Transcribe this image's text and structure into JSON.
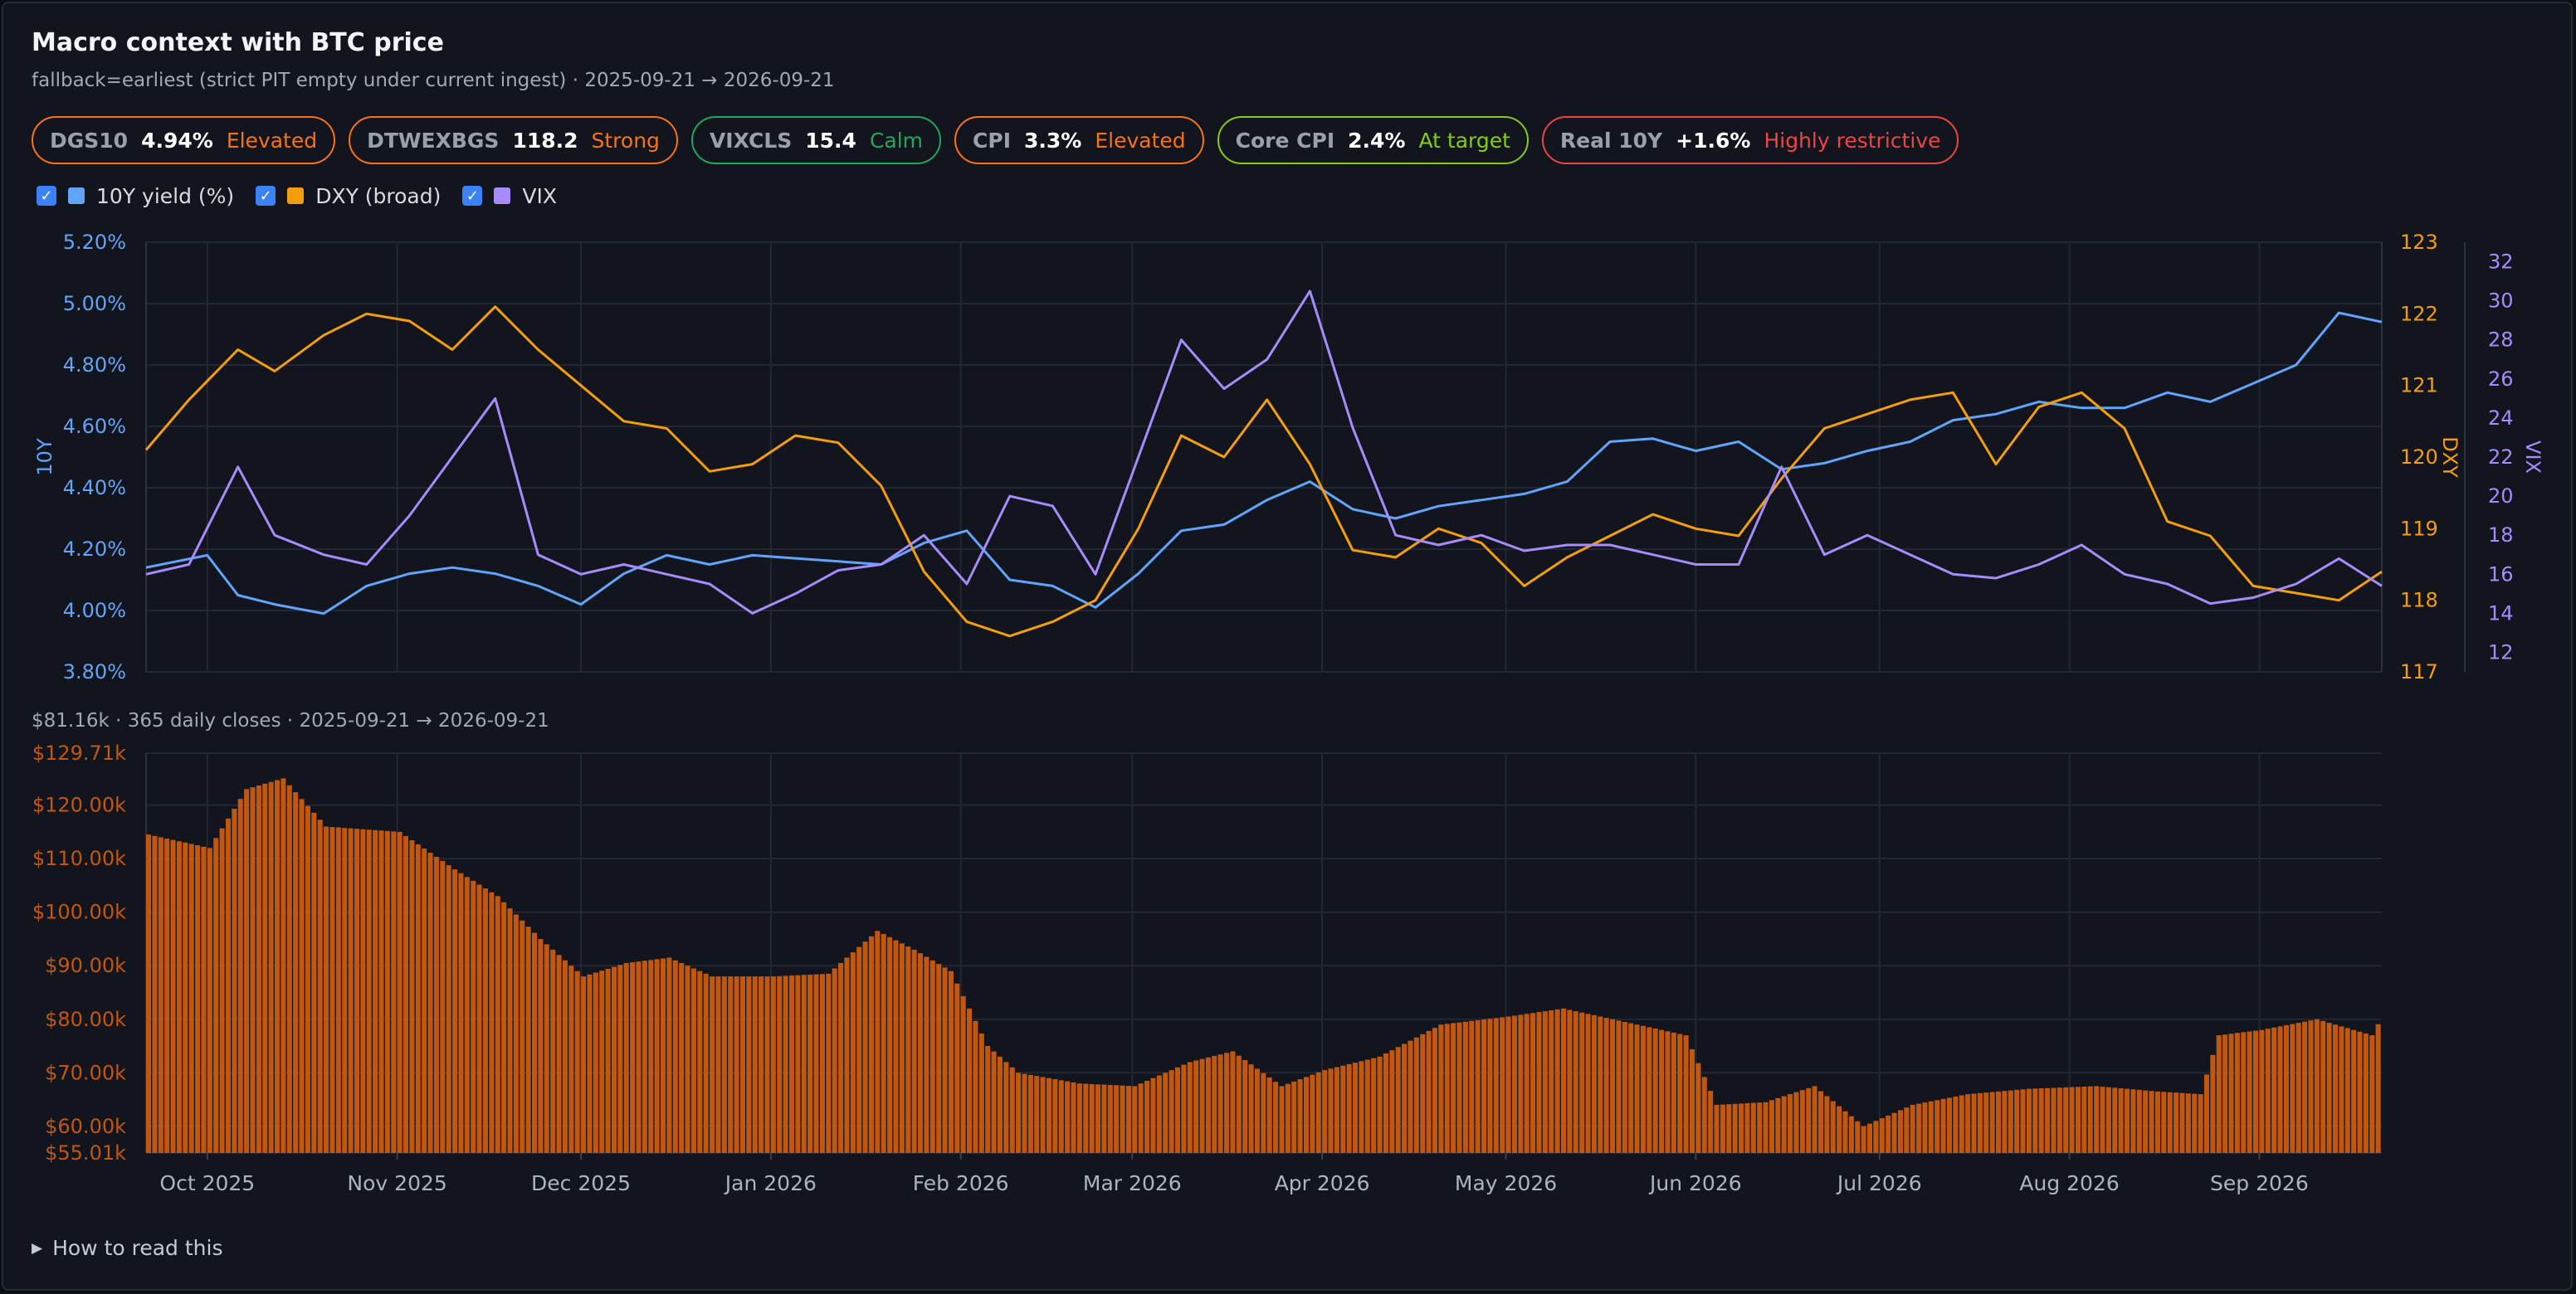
{
  "title": "Macro context with BTC price",
  "subtitle": "fallback=earliest (strict PIT empty under current ingest) · 2025-09-21 → 2026-09-21",
  "indicators": [
    {
      "code": "DGS10",
      "value": "4.94%",
      "status": "Elevated",
      "border": "#f97316",
      "status_color": "#f97316"
    },
    {
      "code": "DTWEXBGS",
      "value": "118.2",
      "status": "Strong",
      "border": "#f97316",
      "status_color": "#f97316"
    },
    {
      "code": "VIXCLS",
      "value": "15.4",
      "status": "Calm",
      "border": "#22a85a",
      "status_color": "#22a85a"
    },
    {
      "code": "CPI",
      "value": "3.3%",
      "status": "Elevated",
      "border": "#f97316",
      "status_color": "#f97316"
    },
    {
      "code": "Core CPI",
      "value": "2.4%",
      "status": "At target",
      "border": "#84cc16",
      "status_color": "#84cc16"
    },
    {
      "code": "Real 10Y",
      "value": "+1.6%",
      "status": "Highly restrictive",
      "border": "#ef4444",
      "status_color": "#ef4444"
    }
  ],
  "legend": [
    {
      "label": "10Y yield (%)",
      "color": "#60a5fa",
      "checked": true,
      "check_glyph": "✓"
    },
    {
      "label": "DXY (broad)",
      "color": "#f59e0b",
      "checked": true,
      "check_glyph": "✓"
    },
    {
      "label": "VIX",
      "color": "#a78bfa",
      "checked": true,
      "check_glyph": "✓"
    }
  ],
  "btc_summary": "$81.16k · 365 daily closes · 2025-09-21 → 2026-09-21",
  "how_to_read": "How to read this",
  "how_to_read_glyph": "▶",
  "chart_data": [
    {
      "type": "line",
      "x_range": [
        "2025-09-21",
        "2026-09-21"
      ],
      "series": [
        {
          "name": "10Y yield (%)",
          "axis": "left",
          "ylabel": "10Y",
          "color": "#60a5fa",
          "ylim": [
            3.8,
            5.2
          ],
          "ytick_labels": [
            "5.20%",
            "5.00%",
            "4.80%",
            "4.60%",
            "4.40%",
            "4.20%",
            "4.00%",
            "3.80%"
          ],
          "ytick_values": [
            5.2,
            5.0,
            4.8,
            4.6,
            4.4,
            4.2,
            4.0,
            3.8
          ],
          "x": [
            "2025-09-21",
            "2025-10-01",
            "2025-10-06",
            "2025-10-12",
            "2025-10-20",
            "2025-10-27",
            "2025-11-03",
            "2025-11-10",
            "2025-11-17",
            "2025-11-24",
            "2025-12-01",
            "2025-12-08",
            "2025-12-15",
            "2025-12-22",
            "2025-12-29",
            "2026-01-05",
            "2026-01-12",
            "2026-01-19",
            "2026-01-26",
            "2026-02-02",
            "2026-02-09",
            "2026-02-16",
            "2026-02-23",
            "2026-03-02",
            "2026-03-09",
            "2026-03-16",
            "2026-03-23",
            "2026-03-30",
            "2026-04-06",
            "2026-04-13",
            "2026-04-20",
            "2026-04-27",
            "2026-05-04",
            "2026-05-11",
            "2026-05-18",
            "2026-05-25",
            "2026-06-01",
            "2026-06-08",
            "2026-06-15",
            "2026-06-22",
            "2026-06-29",
            "2026-07-06",
            "2026-07-13",
            "2026-07-20",
            "2026-07-27",
            "2026-08-03",
            "2026-08-10",
            "2026-08-17",
            "2026-08-24",
            "2026-08-31",
            "2026-09-07",
            "2026-09-14",
            "2026-09-21"
          ],
          "values": [
            4.14,
            4.18,
            4.05,
            4.02,
            3.99,
            4.08,
            4.12,
            4.14,
            4.12,
            4.08,
            4.02,
            4.12,
            4.18,
            4.15,
            4.18,
            4.17,
            4.16,
            4.15,
            4.22,
            4.26,
            4.1,
            4.08,
            4.01,
            4.12,
            4.26,
            4.28,
            4.36,
            4.42,
            4.33,
            4.3,
            4.34,
            4.36,
            4.38,
            4.42,
            4.55,
            4.56,
            4.52,
            4.55,
            4.46,
            4.48,
            4.52,
            4.55,
            4.62,
            4.64,
            4.68,
            4.66,
            4.66,
            4.71,
            4.68,
            4.74,
            4.8,
            4.97,
            4.94
          ]
        },
        {
          "name": "DXY (broad)",
          "axis": "right",
          "ylabel": "DXY",
          "color": "#f59e0b",
          "ylim": [
            117,
            123
          ],
          "ytick_labels": [
            "123",
            "122",
            "121",
            "120",
            "119",
            "118",
            "117"
          ],
          "ytick_values": [
            123,
            122,
            121,
            120,
            119,
            118,
            117
          ],
          "x": [
            "2025-09-21",
            "2025-09-28",
            "2025-10-06",
            "2025-10-12",
            "2025-10-20",
            "2025-10-27",
            "2025-11-03",
            "2025-11-10",
            "2025-11-17",
            "2025-11-24",
            "2025-12-01",
            "2025-12-08",
            "2025-12-15",
            "2025-12-22",
            "2025-12-29",
            "2026-01-05",
            "2026-01-12",
            "2026-01-19",
            "2026-01-26",
            "2026-02-02",
            "2026-02-09",
            "2026-02-16",
            "2026-02-23",
            "2026-03-02",
            "2026-03-09",
            "2026-03-16",
            "2026-03-23",
            "2026-03-30",
            "2026-04-06",
            "2026-04-13",
            "2026-04-20",
            "2026-04-27",
            "2026-05-04",
            "2026-05-11",
            "2026-05-18",
            "2026-05-25",
            "2026-06-01",
            "2026-06-08",
            "2026-06-15",
            "2026-06-22",
            "2026-06-29",
            "2026-07-06",
            "2026-07-13",
            "2026-07-20",
            "2026-07-27",
            "2026-08-03",
            "2026-08-10",
            "2026-08-17",
            "2026-08-24",
            "2026-08-31",
            "2026-09-07",
            "2026-09-14",
            "2026-09-21"
          ],
          "values": [
            120.1,
            120.8,
            121.5,
            121.2,
            121.7,
            122.0,
            121.9,
            121.5,
            122.1,
            121.5,
            121.0,
            120.5,
            120.4,
            119.8,
            119.9,
            120.3,
            120.2,
            119.6,
            118.4,
            117.7,
            117.5,
            117.7,
            118.0,
            119.0,
            120.3,
            120.0,
            120.8,
            119.9,
            118.7,
            118.6,
            119.0,
            118.8,
            118.2,
            118.6,
            118.9,
            119.2,
            119.0,
            118.9,
            119.7,
            120.4,
            120.6,
            120.8,
            120.9,
            119.9,
            120.7,
            120.9,
            120.4,
            119.1,
            118.9,
            118.2,
            118.1,
            118.0,
            118.4
          ]
        },
        {
          "name": "VIX",
          "axis": "right2",
          "ylabel": "VIX",
          "color": "#a78bfa",
          "ylim": [
            11,
            33
          ],
          "ytick_labels": [
            "32",
            "30",
            "28",
            "26",
            "24",
            "22",
            "20",
            "18",
            "16",
            "14",
            "12"
          ],
          "ytick_values": [
            32,
            30,
            28,
            26,
            24,
            22,
            20,
            18,
            16,
            14,
            12
          ],
          "x": [
            "2025-09-21",
            "2025-09-28",
            "2025-10-06",
            "2025-10-12",
            "2025-10-20",
            "2025-10-27",
            "2025-11-03",
            "2025-11-10",
            "2025-11-17",
            "2025-11-24",
            "2025-12-01",
            "2025-12-08",
            "2025-12-15",
            "2025-12-22",
            "2025-12-29",
            "2026-01-05",
            "2026-01-12",
            "2026-01-19",
            "2026-01-26",
            "2026-02-02",
            "2026-02-09",
            "2026-02-16",
            "2026-02-23",
            "2026-03-02",
            "2026-03-09",
            "2026-03-16",
            "2026-03-23",
            "2026-03-30",
            "2026-04-06",
            "2026-04-13",
            "2026-04-20",
            "2026-04-27",
            "2026-05-04",
            "2026-05-11",
            "2026-05-18",
            "2026-05-25",
            "2026-06-01",
            "2026-06-08",
            "2026-06-15",
            "2026-06-22",
            "2026-06-29",
            "2026-07-06",
            "2026-07-13",
            "2026-07-20",
            "2026-07-27",
            "2026-08-03",
            "2026-08-10",
            "2026-08-17",
            "2026-08-24",
            "2026-08-31",
            "2026-09-07",
            "2026-09-14",
            "2026-09-21"
          ],
          "values": [
            16.0,
            16.5,
            21.5,
            18.0,
            17.0,
            16.5,
            19.0,
            22.0,
            25.0,
            17.0,
            16.0,
            16.5,
            16.0,
            15.5,
            14.0,
            15.0,
            16.2,
            16.5,
            18.0,
            15.5,
            20.0,
            19.5,
            16.0,
            22.0,
            28.0,
            25.5,
            27.0,
            30.5,
            23.5,
            18.0,
            17.5,
            18.0,
            17.2,
            17.5,
            17.5,
            17.0,
            16.5,
            16.5,
            21.5,
            17.0,
            18.0,
            17.0,
            16.0,
            15.8,
            16.5,
            17.5,
            16.0,
            15.5,
            14.5,
            14.8,
            15.5,
            16.8,
            15.4
          ]
        }
      ],
      "xtick_labels": [
        "Oct 2025",
        "Nov 2025",
        "Dec 2025",
        "Jan 2026",
        "Feb 2026",
        "Mar 2026",
        "Apr 2026",
        "May 2026",
        "Jun 2026",
        "Jul 2026",
        "Aug 2026",
        "Sep 2026"
      ],
      "grid": true
    },
    {
      "type": "bar",
      "name": "BTC price",
      "color": "#c2570f",
      "x_range": [
        "2025-09-21",
        "2026-09-21"
      ],
      "ylim": [
        55.01,
        129.71
      ],
      "ytick_labels": [
        "$129.71k",
        "$120.00k",
        "$110.00k",
        "$100.00k",
        "$90.00k",
        "$80.00k",
        "$70.00k",
        "$60.00k",
        "$55.01k"
      ],
      "ytick_values": [
        129.71,
        120,
        110,
        100,
        90,
        80,
        70,
        60,
        55.01
      ],
      "x": [
        "2025-09-21",
        "2025-10-01",
        "2025-10-07",
        "2025-10-13",
        "2025-10-20",
        "2025-11-01",
        "2025-11-10",
        "2025-11-17",
        "2025-11-24",
        "2025-12-01",
        "2025-12-08",
        "2025-12-15",
        "2025-12-22",
        "2026-01-01",
        "2026-01-10",
        "2026-01-18",
        "2026-01-24",
        "2026-01-30",
        "2026-02-05",
        "2026-02-10",
        "2026-02-20",
        "2026-03-01",
        "2026-03-10",
        "2026-03-17",
        "2026-03-25",
        "2026-04-01",
        "2026-04-10",
        "2026-04-20",
        "2026-05-01",
        "2026-05-10",
        "2026-05-20",
        "2026-05-30",
        "2026-06-04",
        "2026-06-12",
        "2026-06-20",
        "2026-06-28",
        "2026-07-06",
        "2026-07-15",
        "2026-07-25",
        "2026-08-05",
        "2026-08-15",
        "2026-08-22",
        "2026-08-25",
        "2026-09-01",
        "2026-09-10",
        "2026-09-19",
        "2026-09-21"
      ],
      "values": [
        114.5,
        112.0,
        123.0,
        125.0,
        116.0,
        115.0,
        108.0,
        103.0,
        95.0,
        88.0,
        90.5,
        91.5,
        88.0,
        88.0,
        88.5,
        96.5,
        93.0,
        89.0,
        75.0,
        70.0,
        68.0,
        67.5,
        72.0,
        74.0,
        67.5,
        70.5,
        73.0,
        79.0,
        80.5,
        82.0,
        79.5,
        77.0,
        64.0,
        64.5,
        67.5,
        60.0,
        64.0,
        66.0,
        67.0,
        67.5,
        66.5,
        66.0,
        77.0,
        78.0,
        80.0,
        77.0,
        81.16
      ],
      "xtick_labels": [
        "Oct 2025",
        "Nov 2025",
        "Dec 2025",
        "Jan 2026",
        "Feb 2026",
        "Mar 2026",
        "Apr 2026",
        "May 2026",
        "Jun 2026",
        "Jul 2026",
        "Aug 2026",
        "Sep 2026"
      ],
      "grid": true
    }
  ]
}
